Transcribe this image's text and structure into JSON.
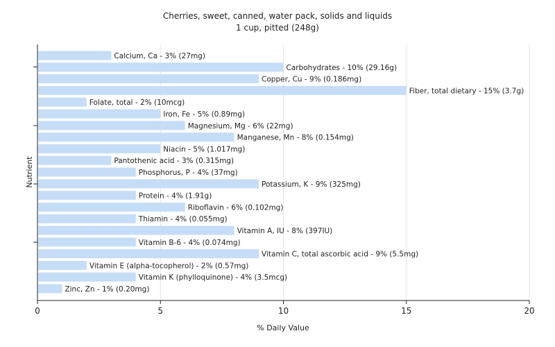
{
  "chart_data": {
    "type": "bar",
    "orientation": "horizontal",
    "title": "Cherries, sweet, canned, water pack, solids and liquids",
    "subtitle": "1 cup, pitted (248g)",
    "xlabel": "% Daily Value",
    "ylabel": "Nutrient",
    "xlim": [
      0,
      20
    ],
    "xticks": [
      0,
      5,
      10,
      15,
      20
    ],
    "grid": true,
    "bar_color": "#c6ddf7",
    "categories": [
      "Calcium, Ca",
      "Carbohydrates",
      "Copper, Cu",
      "Fiber, total dietary",
      "Folate, total",
      "Iron, Fe",
      "Magnesium, Mg",
      "Manganese, Mn",
      "Niacin",
      "Pantothenic acid",
      "Phosphorus, P",
      "Potassium, K",
      "Protein",
      "Riboflavin",
      "Thiamin",
      "Vitamin A, IU",
      "Vitamin B-6",
      "Vitamin C, total ascorbic acid",
      "Vitamin E (alpha-tocopherol)",
      "Vitamin K (phylloquinone)",
      "Zinc, Zn"
    ],
    "values": [
      3,
      10,
      9,
      15,
      2,
      5,
      6,
      8,
      5,
      3,
      4,
      9,
      4,
      6,
      4,
      8,
      4,
      9,
      2,
      4,
      1
    ],
    "labels": [
      "Calcium, Ca - 3% (27mg)",
      "Carbohydrates - 10% (29.16g)",
      "Copper, Cu - 9% (0.186mg)",
      "Fiber, total dietary - 15% (3.7g)",
      "Folate, total - 2% (10mcg)",
      "Iron, Fe - 5% (0.89mg)",
      "Magnesium, Mg - 6% (22mg)",
      "Manganese, Mn - 8% (0.154mg)",
      "Niacin - 5% (1.017mg)",
      "Pantothenic acid - 3% (0.315mg)",
      "Phosphorus, P - 4% (37mg)",
      "Potassium, K - 9% (325mg)",
      "Protein - 4% (1.91g)",
      "Riboflavin - 6% (0.102mg)",
      "Thiamin - 4% (0.055mg)",
      "Vitamin A, IU - 8% (397IU)",
      "Vitamin B-6 - 4% (0.074mg)",
      "Vitamin C, total ascorbic acid - 9% (5.5mg)",
      "Vitamin E (alpha-tocopherol) - 2% (0.57mg)",
      "Vitamin K (phylloquinone) - 4% (3.5mcg)",
      "Zinc, Zn - 1% (0.20mg)"
    ]
  }
}
